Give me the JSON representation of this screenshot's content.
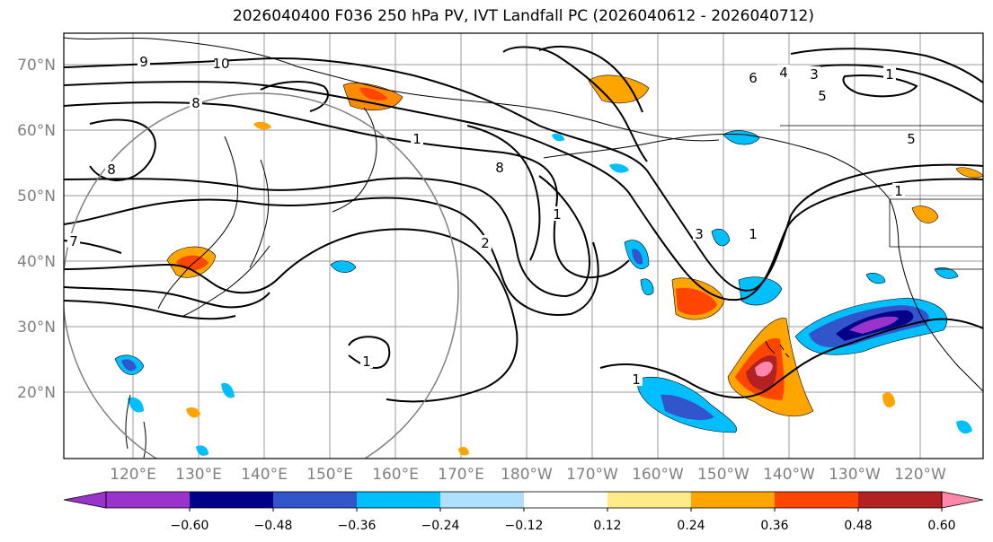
{
  "title": "2026040400 F036 250 hPa PV, IVT Landfall PC (2026040612 - 2026040712)",
  "lat_labels": [
    "70°N",
    "60°N",
    "50°N",
    "40°N",
    "30°N",
    "20°N"
  ],
  "lon_labels": [
    "120°E",
    "130°E",
    "140°E",
    "150°E",
    "160°E",
    "170°E",
    "180°W",
    "170°W",
    "160°W",
    "150°W",
    "140°W",
    "130°W",
    "120°W"
  ],
  "contour_labels": [
    "9",
    "10",
    "8",
    "7",
    "8",
    "1",
    "1",
    "5",
    "1",
    "8",
    "2",
    "3",
    "1",
    "6",
    "5",
    "4",
    "3",
    "1",
    "1",
    "1"
  ],
  "colorbar": {
    "colors": [
      "#9933cc",
      "#000088",
      "#3355cc",
      "#00bfff",
      "#b0e0ff",
      "#ffffff",
      "#ffeb8a",
      "#ffa500",
      "#ff4500",
      "#b22222",
      "#ff88aa"
    ],
    "ticks": [
      "−0.60",
      "−0.48",
      "−0.36",
      "−0.24",
      "−0.12",
      "0.12",
      "0.24",
      "0.36",
      "0.48",
      "0.60"
    ]
  }
}
